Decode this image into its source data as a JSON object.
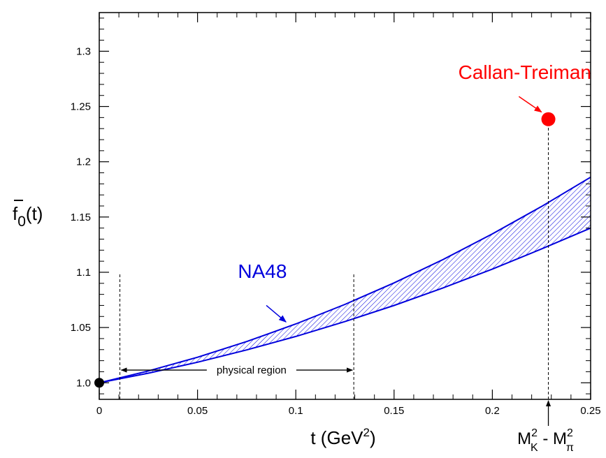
{
  "chart_data": {
    "type": "area",
    "x_ticks": [
      "0",
      "0.05",
      "0.1",
      "0.15",
      "0.2",
      "0.25"
    ],
    "y_ticks": [
      "1.0",
      "1.05",
      "1.1",
      "1.15",
      "1.2",
      "1.25",
      "1.3"
    ],
    "xlim": [
      0,
      0.25
    ],
    "ylim": [
      0.985,
      1.335
    ],
    "xlabel": "t (GeV",
    "xlabel_sup": "2",
    "xlabel_end": ")",
    "ylabel_main": "f",
    "ylabel_sub": "0",
    "ylabel_end": "(t)",
    "grid": false,
    "band": {
      "name": "NA48",
      "color": "#0000dd",
      "x": [
        0,
        0.025,
        0.05,
        0.075,
        0.1,
        0.125,
        0.15,
        0.175,
        0.2,
        0.225,
        0.25
      ],
      "upper": [
        1.0,
        1.0107,
        1.0231,
        1.0373,
        1.0532,
        1.0709,
        1.0904,
        1.1116,
        1.1347,
        1.1595,
        1.186
      ],
      "lower": [
        1.0,
        1.0087,
        1.0186,
        1.0297,
        1.0419,
        1.0554,
        1.07,
        1.0859,
        1.1029,
        1.1211,
        1.14
      ],
      "label": "NA48",
      "label_at": [
        0.083,
        1.095
      ],
      "arrow_from": [
        0.085,
        1.07
      ],
      "arrow_to": [
        0.095,
        1.055
      ]
    },
    "points": [
      {
        "name": "origin",
        "x": 0,
        "y": 1.0,
        "color": "#000000"
      },
      {
        "name": "Callan-Treiman",
        "x": 0.2285,
        "y": 1.2385,
        "color": "#ff0000"
      }
    ],
    "callan_treiman_label": "Callan-Treiman",
    "callan_treiman_label_at": [
      0.2165,
      1.275
    ],
    "callan_treiman_arrow_from": [
      0.2135,
      1.259
    ],
    "callan_treiman_arrow_to": [
      0.225,
      1.245
    ],
    "vlines": [
      {
        "x": 0.0105,
        "y0": 0.985,
        "y1": 1.1
      },
      {
        "x": 0.1295,
        "y0": 0.985,
        "y1": 1.1
      },
      {
        "x": 0.2285,
        "y0": 0.985,
        "y1": 1.2385
      }
    ],
    "physical_region": {
      "label": "physical region",
      "x0": 0.0105,
      "x1": 0.1295,
      "y": 1.0115,
      "label_x": 0.0725
    },
    "mk_mpi_marker": {
      "x": 0.2285,
      "parts": [
        "M",
        "2",
        "K",
        " - M",
        "2",
        "π"
      ]
    }
  }
}
